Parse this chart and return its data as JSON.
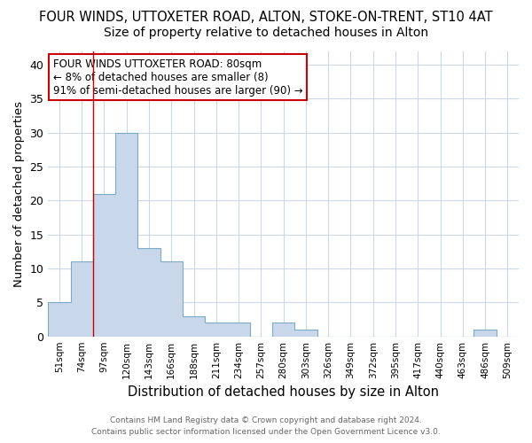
{
  "title1": "FOUR WINDS, UTTOXETER ROAD, ALTON, STOKE-ON-TRENT, ST10 4AT",
  "title2": "Size of property relative to detached houses in Alton",
  "xlabel": "Distribution of detached houses by size in Alton",
  "ylabel": "Number of detached properties",
  "categories": [
    "51sqm",
    "74sqm",
    "97sqm",
    "120sqm",
    "143sqm",
    "166sqm",
    "188sqm",
    "211sqm",
    "234sqm",
    "257sqm",
    "280sqm",
    "303sqm",
    "326sqm",
    "349sqm",
    "372sqm",
    "395sqm",
    "417sqm",
    "440sqm",
    "463sqm",
    "486sqm",
    "509sqm"
  ],
  "values": [
    5,
    11,
    21,
    30,
    13,
    11,
    3,
    2,
    2,
    0,
    2,
    1,
    0,
    0,
    0,
    0,
    0,
    0,
    0,
    1,
    0
  ],
  "bar_color": "#c8d8ea",
  "bar_edgecolor": "#7aaac8",
  "redline_x": 1.5,
  "ylim": [
    0,
    42
  ],
  "yticks": [
    0,
    5,
    10,
    15,
    20,
    25,
    30,
    35,
    40
  ],
  "annotation_title": "FOUR WINDS UTTOXETER ROAD: 80sqm",
  "annotation_line1": "← 8% of detached houses are smaller (8)",
  "annotation_line2": "91% of semi-detached houses are larger (90) →",
  "annotation_box_color": "#ffffff",
  "annotation_box_edgecolor": "#cc0000",
  "footer1": "Contains HM Land Registry data © Crown copyright and database right 2024.",
  "footer2": "Contains public sector information licensed under the Open Government Licence v3.0.",
  "bg_color": "#ffffff",
  "grid_color": "#ccd8e8",
  "title1_fontsize": 10.5,
  "title2_fontsize": 10,
  "xlabel_fontsize": 10.5,
  "ylabel_fontsize": 9.5
}
